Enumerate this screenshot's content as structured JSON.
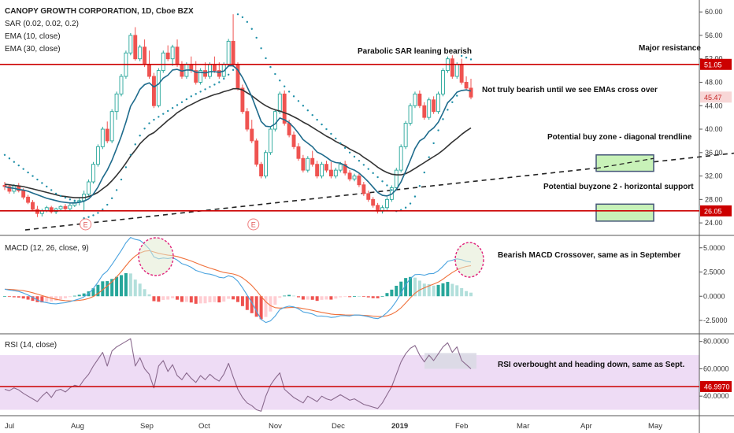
{
  "header": {
    "symbol_line": "CANOPY GROWTH CORPORATION, 1D, Cboe BZX",
    "sar": "SAR (0.02, 0.02, 0.2)",
    "ema10": "EMA (10, close)",
    "ema30": "EMA (30, close)"
  },
  "panes": {
    "macd_title": "MACD (12, 26, close, 9)",
    "rsi_title": "RSI (14, close)"
  },
  "annotations": {
    "sar_note": "Parabolic SAR leaning bearish",
    "resistance_note": "Major resistance",
    "ema_note": "Not truly bearish until we see EMAs cross over",
    "buy_zone_note": "Potential buy zone - diagonal trendline",
    "buy_zone2_note": "Potential buyzone 2 - horizontal support",
    "macd_note": "Bearish MACD Crossover, same as in September",
    "rsi_note": "RSI overbought and heading down, same as Sept.",
    "earnings_marker": "E"
  },
  "colors": {
    "up": "#26a69a",
    "down": "#ef5350",
    "ema10": "#1e6b8c",
    "ema30": "#333333",
    "sar": "#1f8fa8",
    "hline": "#cc0000",
    "macd": "#4aa3df",
    "signal": "#f0703a",
    "rsi": "#8a6a8e",
    "rsi_band": "#eedcf5",
    "buy_zone": "#c8f2b8",
    "highlight": "#d9d9e4",
    "circle": "#e0207a"
  },
  "chart_data": {
    "type": "candlestick",
    "x_ticks": [
      "Jul",
      "Aug",
      "Sep",
      "Oct",
      "Nov",
      "Dec",
      "2019",
      "Feb",
      "Mar",
      "Apr",
      "May"
    ],
    "price": {
      "y_ticks": [
        24,
        28,
        32,
        36,
        40,
        44,
        48,
        52,
        56,
        60
      ],
      "y_tick_labels": [
        "24.00",
        "28.00",
        "32.00",
        "36.00",
        "40.00",
        "44.00",
        "48.00",
        "52.00",
        "56.00",
        "60.00"
      ],
      "ylim": [
        22,
        61.5
      ],
      "resistance": 51.05,
      "resistance_label": "51.05",
      "support": 26.05,
      "support_label": "26.05",
      "last": 45.47,
      "last_label": "45.47",
      "trendline": [
        [
          0,
          22.8
        ],
        [
          1,
          35.9
        ]
      ],
      "candles": [
        [
          30.4,
          31.0,
          29.6,
          30.2
        ],
        [
          30.2,
          30.6,
          29.0,
          29.4
        ],
        [
          29.4,
          30.6,
          29.0,
          30.3
        ],
        [
          30.3,
          30.8,
          29.2,
          29.5
        ],
        [
          29.5,
          29.9,
          28.0,
          28.4
        ],
        [
          28.4,
          28.8,
          27.2,
          27.5
        ],
        [
          27.5,
          27.9,
          26.0,
          26.3
        ],
        [
          26.3,
          26.9,
          25.0,
          25.6
        ],
        [
          25.6,
          26.4,
          25.1,
          26.1
        ],
        [
          26.1,
          26.9,
          25.8,
          26.6
        ],
        [
          26.6,
          26.9,
          25.6,
          25.9
        ],
        [
          25.9,
          26.6,
          25.5,
          26.4
        ],
        [
          26.4,
          27.0,
          26.0,
          26.8
        ],
        [
          26.8,
          27.2,
          26.1,
          26.4
        ],
        [
          26.4,
          27.3,
          26.1,
          27.0
        ],
        [
          27.0,
          27.9,
          26.7,
          27.5
        ],
        [
          27.5,
          28.3,
          27.0,
          27.8
        ],
        [
          27.8,
          29.5,
          26.0,
          28.9
        ],
        [
          28.9,
          31.4,
          28.6,
          31.0
        ],
        [
          31.0,
          34.4,
          30.7,
          34.0
        ],
        [
          34.0,
          37.4,
          33.6,
          37.0
        ],
        [
          37.0,
          40.4,
          36.6,
          40.0
        ],
        [
          40.0,
          41.3,
          37.6,
          38.0
        ],
        [
          38.0,
          43.4,
          37.6,
          43.0
        ],
        [
          43.0,
          46.4,
          41.6,
          46.0
        ],
        [
          46.0,
          49.4,
          45.6,
          49.0
        ],
        [
          49.0,
          53.4,
          48.6,
          53.0
        ],
        [
          53.0,
          56.4,
          52.6,
          56.0
        ],
        [
          56.0,
          57.4,
          51.7,
          52.0
        ],
        [
          52.0,
          54.4,
          51.6,
          54.0
        ],
        [
          54.0,
          55.3,
          50.6,
          51.0
        ],
        [
          51.0,
          53.4,
          48.6,
          49.0
        ],
        [
          49.0,
          49.6,
          43.6,
          44.0
        ],
        [
          44.0,
          50.4,
          43.7,
          50.0
        ],
        [
          50.0,
          53.4,
          49.6,
          53.0
        ],
        [
          53.0,
          54.3,
          51.6,
          52.0
        ],
        [
          52.0,
          54.4,
          50.8,
          54.0
        ],
        [
          54.0,
          55.3,
          50.6,
          51.0
        ],
        [
          51.0,
          51.6,
          48.6,
          49.0
        ],
        [
          49.0,
          51.4,
          48.6,
          51.0
        ],
        [
          51.0,
          52.4,
          49.6,
          50.0
        ],
        [
          50.0,
          51.6,
          47.6,
          48.0
        ],
        [
          48.0,
          50.4,
          47.6,
          50.0
        ],
        [
          50.0,
          51.4,
          48.6,
          49.0
        ],
        [
          49.0,
          51.4,
          48.6,
          51.0
        ],
        [
          51.0,
          52.4,
          49.6,
          50.0
        ],
        [
          50.0,
          51.4,
          48.6,
          49.0
        ],
        [
          49.0,
          51.4,
          48.6,
          51.0
        ],
        [
          51.0,
          55.4,
          50.6,
          55.0
        ],
        [
          55.0,
          59.6,
          50.6,
          51.0
        ],
        [
          51.0,
          51.4,
          46.6,
          47.0
        ],
        [
          47.0,
          47.6,
          42.6,
          43.0
        ],
        [
          43.0,
          43.6,
          39.6,
          40.0
        ],
        [
          40.0,
          41.6,
          37.6,
          38.0
        ],
        [
          38.0,
          38.4,
          33.6,
          34.0
        ],
        [
          34.0,
          34.4,
          31.6,
          32.0
        ],
        [
          32.0,
          36.4,
          31.6,
          36.0
        ],
        [
          36.0,
          40.4,
          35.6,
          40.0
        ],
        [
          40.0,
          43.4,
          39.6,
          43.0
        ],
        [
          43.0,
          46.4,
          42.6,
          46.0
        ],
        [
          46.0,
          46.6,
          40.6,
          41.0
        ],
        [
          41.0,
          41.6,
          38.6,
          39.0
        ],
        [
          39.0,
          39.6,
          36.6,
          37.0
        ],
        [
          37.0,
          37.6,
          34.6,
          35.0
        ],
        [
          35.0,
          35.6,
          32.6,
          33.0
        ],
        [
          33.0,
          35.4,
          32.6,
          35.0
        ],
        [
          35.0,
          36.3,
          33.6,
          34.0
        ],
        [
          34.0,
          34.6,
          31.6,
          32.0
        ],
        [
          32.0,
          34.4,
          31.6,
          34.0
        ],
        [
          34.0,
          34.6,
          32.6,
          33.0
        ],
        [
          33.0,
          34.4,
          31.6,
          32.0
        ],
        [
          32.0,
          33.4,
          31.6,
          33.0
        ],
        [
          33.0,
          34.4,
          32.6,
          34.0
        ],
        [
          34.0,
          34.6,
          32.1,
          32.5
        ],
        [
          32.5,
          33.0,
          31.1,
          31.5
        ],
        [
          31.5,
          32.4,
          31.1,
          32.0
        ],
        [
          32.0,
          32.4,
          30.1,
          30.5
        ],
        [
          30.5,
          31.0,
          28.6,
          29.0
        ],
        [
          29.0,
          29.5,
          27.6,
          28.0
        ],
        [
          28.0,
          28.4,
          26.6,
          27.0
        ],
        [
          27.0,
          27.4,
          25.6,
          26.0
        ],
        [
          26.0,
          27.0,
          25.6,
          26.6
        ],
        [
          26.6,
          28.4,
          26.2,
          28.0
        ],
        [
          28.0,
          30.4,
          27.6,
          30.0
        ],
        [
          30.0,
          33.4,
          29.6,
          33.0
        ],
        [
          33.0,
          37.4,
          32.6,
          37.0
        ],
        [
          37.0,
          41.4,
          36.6,
          41.0
        ],
        [
          41.0,
          44.4,
          40.6,
          44.0
        ],
        [
          44.0,
          46.4,
          43.6,
          46.0
        ],
        [
          46.0,
          46.6,
          43.6,
          44.0
        ],
        [
          44.0,
          44.6,
          41.6,
          42.0
        ],
        [
          42.0,
          45.4,
          41.6,
          45.0
        ],
        [
          45.0,
          45.6,
          42.6,
          43.0
        ],
        [
          43.0,
          46.4,
          42.6,
          46.0
        ],
        [
          46.0,
          50.4,
          45.6,
          50.0
        ],
        [
          50.0,
          52.4,
          49.6,
          52.0
        ],
        [
          52.0,
          52.6,
          48.6,
          49.0
        ],
        [
          49.0,
          51.4,
          48.6,
          51.0
        ],
        [
          51.0,
          52.0,
          47.6,
          48.0
        ],
        [
          48.0,
          49.0,
          46.6,
          47.0
        ],
        [
          47.0,
          48.6,
          45.1,
          45.47
        ]
      ],
      "ema10": [
        30.2,
        30.0,
        29.9,
        29.7,
        29.6,
        29.4,
        29.1,
        28.8,
        28.5,
        28.2,
        28.0,
        27.8,
        27.6,
        27.5,
        27.4,
        27.4,
        27.5,
        27.7,
        28.1,
        28.9,
        30.1,
        31.7,
        33.0,
        34.7,
        36.7,
        38.8,
        41.2,
        43.9,
        45.2,
        46.8,
        47.6,
        47.9,
        47.2,
        47.7,
        48.7,
        49.2,
        50.1,
        50.2,
        49.9,
        50.1,
        50.1,
        49.7,
        49.7,
        49.6,
        49.8,
        49.8,
        49.7,
        49.9,
        50.8,
        50.8,
        50.1,
        48.8,
        47.2,
        45.5,
        43.4,
        41.3,
        40.5,
        40.4,
        40.9,
        41.9,
        41.6,
        41.1,
        40.3,
        39.3,
        38.2,
        37.6,
        37.0,
        36.1,
        35.7,
        35.2,
        34.6,
        34.3,
        34.2,
        33.8,
        33.3,
        33.0,
        32.5,
        31.8,
        31.0,
        30.1,
        29.2,
        28.7,
        28.6,
        28.9,
        29.7,
        31.0,
        32.8,
        34.7,
        36.7,
        38.0,
        38.5,
        39.6,
        40.2,
        41.2,
        42.8,
        44.5,
        45.3,
        46.3,
        46.6,
        46.7,
        46.5
      ],
      "ema30": [
        30.6,
        30.5,
        30.4,
        30.3,
        30.2,
        30.0,
        29.8,
        29.6,
        29.4,
        29.2,
        29.0,
        28.8,
        28.6,
        28.5,
        28.4,
        28.3,
        28.3,
        28.3,
        28.5,
        28.8,
        29.2,
        29.8,
        30.4,
        31.2,
        32.1,
        33.1,
        34.2,
        35.4,
        36.4,
        37.5,
        38.3,
        39.0,
        39.4,
        40.1,
        40.8,
        41.5,
        42.1,
        42.8,
        43.3,
        43.8,
        44.2,
        44.6,
        45.0,
        45.3,
        45.6,
        45.9,
        46.1,
        46.4,
        46.6,
        46.9,
        46.9,
        46.7,
        46.2,
        45.7,
        45.1,
        44.5,
        44.0,
        43.6,
        43.3,
        43.1,
        42.8,
        42.5,
        42.1,
        41.7,
        41.2,
        40.8,
        40.3,
        39.8,
        39.3,
        38.8,
        38.4,
        37.9,
        37.5,
        37.1,
        36.6,
        36.2,
        35.8,
        35.2,
        34.7,
        34.1,
        33.5,
        33.0,
        32.6,
        32.3,
        32.2,
        32.2,
        32.4,
        32.8,
        33.3,
        33.8,
        34.3,
        34.8,
        35.3,
        35.8,
        36.4,
        37.1,
        37.8,
        38.4,
        39.1,
        39.7,
        40.2
      ],
      "sar": [
        35.6,
        35.0,
        34.4,
        33.8,
        33.2,
        32.6,
        32.0,
        31.4,
        30.8,
        30.2,
        29.6,
        29.0,
        28.6,
        28.3,
        28.0,
        27.8,
        27.6,
        24.8,
        25.0,
        25.3,
        25.7,
        26.3,
        27.1,
        28.2,
        29.6,
        31.4,
        33.5,
        35.6,
        37.4,
        38.9,
        40.1,
        41.0,
        41.6,
        42.1,
        42.6,
        43.1,
        43.6,
        44.1,
        44.6,
        45.1,
        45.6,
        46.0,
        46.4,
        46.8,
        47.2,
        47.6,
        48.0,
        48.6,
        49.3,
        50.1,
        59.6,
        59.1,
        58.3,
        57.1,
        55.6,
        53.8,
        52.1,
        50.6,
        49.4,
        48.3,
        47.3,
        46.4,
        45.6,
        44.8,
        44.0,
        43.2,
        42.4,
        41.6,
        40.8,
        40.0,
        39.2,
        38.4,
        37.6,
        36.8,
        36.0,
        35.3,
        34.6,
        33.9,
        33.2,
        32.5,
        31.8,
        31.1,
        30.4,
        29.6,
        26.0,
        26.2,
        26.6,
        27.3,
        28.5,
        30.3,
        32.6,
        35.2,
        37.6,
        39.8,
        41.7,
        43.3,
        44.6,
        45.7,
        52.5,
        52.2,
        51.9
      ],
      "earnings_idx": [
        17,
        53
      ]
    },
    "macd": {
      "y_ticks": [
        -2.5,
        0,
        2.5,
        5
      ],
      "y_tick_labels": [
        "-2.5000",
        "0.0000",
        "2.5000",
        "5.0000"
      ],
      "ylim": [
        -3.8,
        6.2
      ],
      "macd": [
        0.73,
        0.64,
        0.57,
        0.49,
        0.33,
        0.13,
        -0.12,
        -0.39,
        -0.57,
        -0.66,
        -0.76,
        -0.78,
        -0.72,
        -0.67,
        -0.56,
        -0.42,
        -0.28,
        -0.07,
        0.27,
        0.79,
        1.45,
        2.2,
        2.61,
        3.28,
        4.0,
        4.72,
        5.52,
        6.07,
        5.87,
        5.77,
        5.38,
        4.89,
        4.06,
        3.86,
        3.95,
        3.89,
        3.98,
        3.74,
        3.36,
        3.21,
        2.99,
        2.66,
        2.51,
        2.34,
        2.28,
        2.15,
        1.96,
        1.89,
        2.11,
        1.97,
        1.55,
        0.88,
        0.12,
        -0.65,
        -1.55,
        -2.4,
        -2.71,
        -2.55,
        -2.05,
        -1.38,
        -1.15,
        -1.03,
        -1.1,
        -1.3,
        -1.62,
        -1.71,
        -1.83,
        -2.05,
        -2.04,
        -2.09,
        -2.19,
        -2.15,
        -2.01,
        -2.0,
        -2.04,
        -1.94,
        -1.95,
        -2.02,
        -2.12,
        -2.25,
        -2.31,
        -2.1,
        -1.69,
        -1.17,
        -0.5,
        0.31,
        1.18,
        1.82,
        2.23,
        2.26,
        2.17,
        2.32,
        2.35,
        2.63,
        3.09,
        3.6,
        3.72,
        3.86,
        3.78,
        3.6,
        3.53
      ],
      "signal": [
        0.73,
        0.71,
        0.68,
        0.63,
        0.57,
        0.48,
        0.36,
        0.22,
        0.07,
        -0.08,
        -0.21,
        -0.32,
        -0.4,
        -0.46,
        -0.48,
        -0.47,
        -0.43,
        -0.36,
        -0.23,
        -0.03,
        0.27,
        0.66,
        1.05,
        1.5,
        2.0,
        2.54,
        3.14,
        3.72,
        4.15,
        4.47,
        4.65,
        4.7,
        4.57,
        4.43,
        4.33,
        4.24,
        4.19,
        4.1,
        3.95,
        3.8,
        3.64,
        3.44,
        3.25,
        3.07,
        2.91,
        2.76,
        2.6,
        2.45,
        2.38,
        2.3,
        2.15,
        1.9,
        1.54,
        1.1,
        0.57,
        -0.03,
        -0.57,
        -0.97,
        -1.18,
        -1.22,
        -1.21,
        -1.17,
        -1.16,
        -1.19,
        -1.27,
        -1.36,
        -1.46,
        -1.57,
        -1.67,
        -1.75,
        -1.84,
        -1.9,
        -1.9,
        -1.93,
        -1.95,
        -1.95,
        -1.95,
        -1.97,
        -2.0,
        -2.05,
        -2.1,
        -2.1,
        -2.02,
        -1.85,
        -1.58,
        -1.2,
        -0.7,
        -0.17,
        0.31,
        0.65,
        0.87,
        1.07,
        1.25,
        1.46,
        1.76,
        2.12,
        2.44,
        2.73,
        2.94,
        3.07,
        3.16
      ]
    },
    "rsi": {
      "y_ticks": [
        40,
        60,
        80
      ],
      "y_tick_labels": [
        "40.0000",
        "60.0000",
        "80.0000"
      ],
      "ylim": [
        28,
        85
      ],
      "band": [
        30,
        70
      ],
      "threshold": 46.997,
      "threshold_label": "46.9970",
      "values": [
        45.0,
        44.0,
        46.0,
        44.5,
        42.0,
        40.0,
        38.0,
        36.0,
        40.0,
        43.0,
        39.0,
        44.0,
        45.0,
        43.0,
        46.0,
        48.0,
        47.0,
        52.0,
        56.0,
        62.0,
        67.0,
        72.0,
        62.0,
        73.0,
        76.0,
        78.0,
        80.0,
        82.0,
        62.0,
        68.0,
        60.0,
        56.0,
        46.0,
        62.0,
        66.0,
        58.0,
        63.0,
        55.0,
        52.0,
        57.0,
        53.0,
        50.0,
        55.0,
        52.0,
        56.0,
        53.0,
        51.0,
        56.0,
        64.0,
        54.0,
        45.0,
        39.0,
        35.0,
        33.0,
        30.0,
        29.0,
        40.0,
        48.0,
        53.0,
        57.0,
        45.0,
        42.0,
        39.0,
        37.0,
        35.0,
        40.0,
        38.0,
        36.0,
        40.0,
        38.0,
        37.0,
        39.0,
        41.0,
        39.0,
        37.0,
        38.0,
        36.0,
        34.0,
        33.0,
        32.0,
        31.0,
        35.0,
        41.0,
        47.0,
        56.0,
        65.0,
        71.0,
        75.0,
        77.0,
        70.0,
        65.0,
        70.0,
        66.0,
        71.0,
        76.0,
        79.0,
        72.0,
        76.0,
        66.0,
        63.0,
        60.0
      ]
    }
  }
}
